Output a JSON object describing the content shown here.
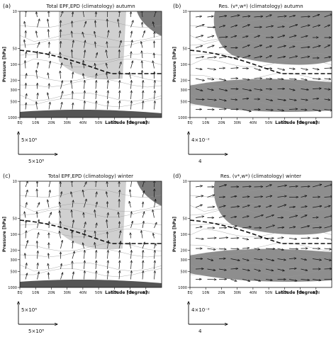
{
  "chart_data": [
    {
      "id": "a",
      "type": "vector",
      "panel_label": "(a)",
      "title": "Total EPF,EPD (climatology) autumn",
      "xlabel": "Latitude [degree]",
      "ylabel": "Pressure [hPa]",
      "x_ticks": [
        "EQ",
        "10N",
        "20N",
        "30N",
        "40N",
        "50N",
        "60N",
        "70N",
        "80N"
      ],
      "y_ticks": [
        "10",
        "50",
        "100",
        "200",
        "300",
        "500",
        "1000"
      ],
      "xlim": [
        0,
        90
      ],
      "ylim": [
        1000,
        10
      ],
      "y_scale": "log",
      "shading": "light",
      "dashed_line": true,
      "legend": {
        "vertical": "5×10⁶",
        "horizontal": "5×10⁸"
      }
    },
    {
      "id": "b",
      "type": "vector",
      "panel_label": "(b)",
      "title": "Res. (v*,w*) (climatology) autumn",
      "xlabel": "Latitude [degree]",
      "ylabel": "Pressure [hPa]",
      "x_ticks": [
        "EQ",
        "10N",
        "20N",
        "30N",
        "40N",
        "50N",
        "60N",
        "70N",
        "80N"
      ],
      "y_ticks": [
        "10",
        "50",
        "100",
        "200",
        "300",
        "500",
        "1000"
      ],
      "xlim": [
        0,
        90
      ],
      "ylim": [
        1000,
        10
      ],
      "y_scale": "log",
      "shading": "dark",
      "dashed_line": true,
      "legend": {
        "vertical": "4×10⁻²",
        "horizontal": "4"
      }
    },
    {
      "id": "c",
      "type": "vector",
      "panel_label": "(c)",
      "title": "Total EPF,EPD (climatology) winter",
      "xlabel": "Latitude [degree]",
      "ylabel": "Pressure [hPa]",
      "x_ticks": [
        "EQ",
        "10N",
        "20N",
        "30N",
        "40N",
        "50N",
        "60N",
        "70N",
        "80N"
      ],
      "y_ticks": [
        "10",
        "50",
        "100",
        "200",
        "300",
        "500",
        "1000"
      ],
      "xlim": [
        0,
        90
      ],
      "ylim": [
        1000,
        10
      ],
      "y_scale": "log",
      "shading": "light",
      "dashed_line": true,
      "legend": {
        "vertical": "5×10⁶",
        "horizontal": "5×10⁸"
      }
    },
    {
      "id": "d",
      "type": "vector",
      "panel_label": "(d)",
      "title": "Res. (v*,w*) (climatology) winter",
      "xlabel": "Latitude [degree]",
      "ylabel": "Pressure [hPa]",
      "x_ticks": [
        "EQ",
        "10N",
        "20N",
        "30N",
        "40N",
        "50N",
        "60N",
        "70N",
        "80N"
      ],
      "y_ticks": [
        "10",
        "50",
        "100",
        "200",
        "300",
        "500",
        "1000"
      ],
      "xlim": [
        0,
        90
      ],
      "ylim": [
        1000,
        10
      ],
      "y_scale": "log",
      "shading": "dark",
      "dashed_line": true,
      "legend": {
        "vertical": "4×10⁻²",
        "horizontal": "4"
      }
    }
  ],
  "colors": {
    "light_shade": "#d0d0d0",
    "dark_shade": "#8e8e8e",
    "ink": "#111111"
  }
}
